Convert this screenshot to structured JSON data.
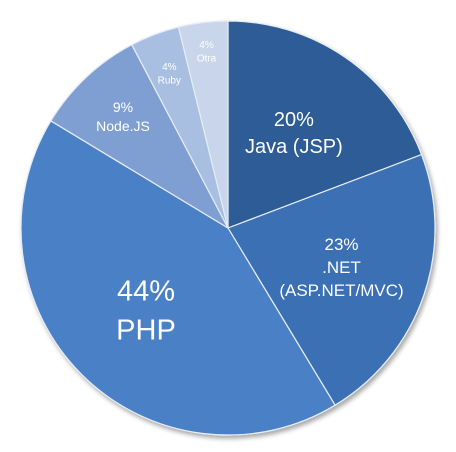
{
  "chart_data": {
    "type": "pie",
    "title": "",
    "start": "12 o'clock",
    "direction": "clockwise",
    "slices": [
      {
        "label": "Java (JSP)",
        "value": 20,
        "value_label": "20%",
        "color": "#2d5b97",
        "text_color": "#ffffff"
      },
      {
        "label": ".NET\n(ASP.NET/MVC)",
        "value": 23,
        "value_label": "23%",
        "color": "#3a6fb4",
        "text_color": "#ffffff"
      },
      {
        "label": "PHP",
        "value": 44,
        "value_label": "44%",
        "color": "#4a80c6",
        "text_color": "#ffffff"
      },
      {
        "label": "Node.JS",
        "value": 9,
        "value_label": "9%",
        "color": "#7f9fd2",
        "text_color": "#ffffff"
      },
      {
        "label": "Ruby",
        "value": 4,
        "value_label": "4%",
        "color": "#a8bfe2",
        "text_color": "#ffffff"
      },
      {
        "label": "Otra",
        "value": 4,
        "value_label": "4%",
        "color": "#c8d5ea",
        "text_color": "#ffffff"
      }
    ]
  }
}
